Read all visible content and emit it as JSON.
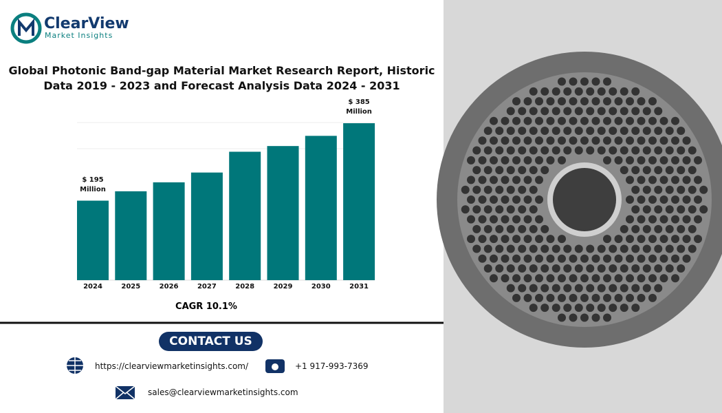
{
  "logo": {
    "name": "ClearView",
    "tagline": "Market Insights"
  },
  "chart_data": {
    "type": "bar",
    "title": "Global Photonic Band-gap Material Market Research Report, Historic Data 2019 - 2023 and Forecast Analysis Data 2024 - 2031",
    "categories": [
      "2024",
      "2025",
      "2026",
      "2027",
      "2028",
      "2029",
      "2030",
      "2031"
    ],
    "values": [
      195,
      218,
      240,
      264,
      315,
      329,
      354,
      385
    ],
    "value_labels": [
      "$ 195 Million",
      null,
      null,
      null,
      null,
      null,
      null,
      "$ 385 Million"
    ],
    "color": "#00777a",
    "annotation": "CAGR 10.1%"
  },
  "contact": {
    "title": "CONTACT US",
    "website": "https://clearviewmarketinsights.com/",
    "phone": "+1 917-993-7369",
    "email": "sales@clearviewmarketinsights.com"
  }
}
